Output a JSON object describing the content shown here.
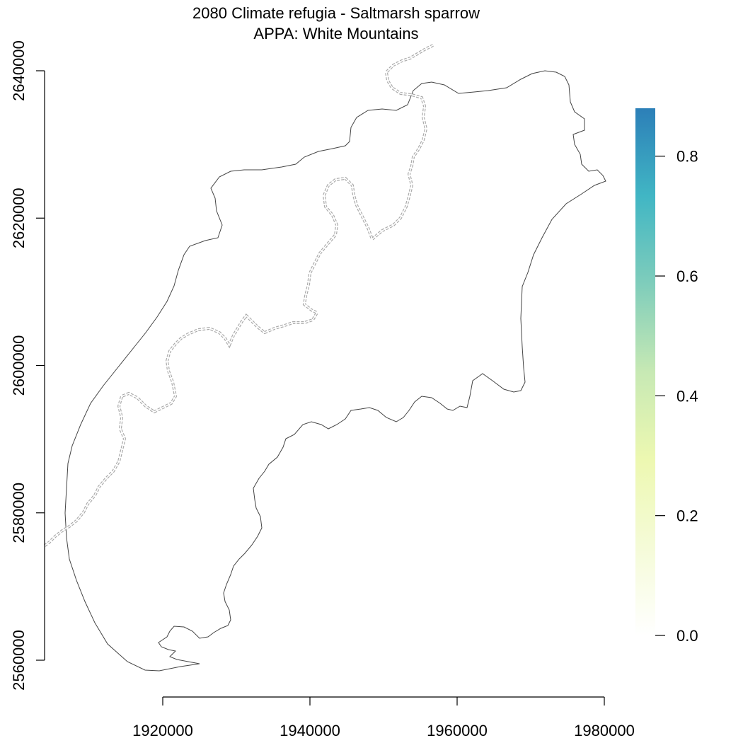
{
  "map": {
    "title_line1": "2080 Climate refugia - Saltmarsh sparrow",
    "title_line2": "APPA: White Mountains",
    "outline_color": "#444444",
    "trail_color": "#aaaaaa"
  },
  "chart_data": {
    "type": "heatmap",
    "x_axis": {
      "range": [
        1900000,
        1985000
      ],
      "ticks": [
        1920000,
        1940000,
        1960000,
        1980000
      ],
      "tick_labels": [
        "1920000",
        "1940000",
        "1960000",
        "1980000"
      ]
    },
    "y_axis": {
      "range": [
        2557000,
        2645000
      ],
      "ticks": [
        2560000,
        2580000,
        2600000,
        2620000,
        2640000
      ],
      "tick_labels": [
        "2560000",
        "2580000",
        "2600000",
        "2620000",
        "2640000"
      ]
    },
    "legend": {
      "placement": "right",
      "range": [
        0,
        0.88
      ],
      "ticks": [
        0.0,
        0.2,
        0.4,
        0.6,
        0.8
      ],
      "tick_labels": [
        "0.0",
        "0.2",
        "0.4",
        "0.6",
        "0.8"
      ],
      "colors": [
        "#ffffff",
        "#f5fbd8",
        "#edf8b1",
        "#c7e9b4",
        "#7fcdbb",
        "#41b6c4",
        "#2c7fb8"
      ]
    }
  }
}
